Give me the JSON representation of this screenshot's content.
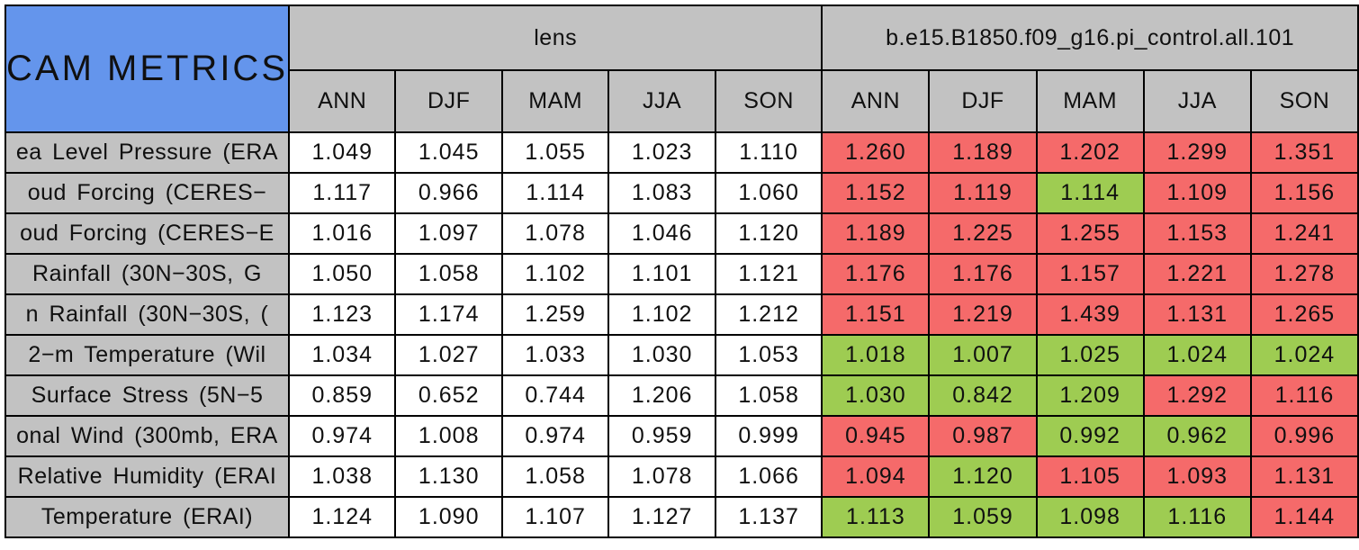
{
  "colors": {
    "title_background": "#6495EC",
    "header_background": "#C2C2C2",
    "worse_cell_red": "#F56A6A",
    "better_cell_green": "#9ECC52",
    "neutral_cell_white": "#FFFFFF",
    "border": "#000000"
  },
  "chart_data": {
    "type": "table",
    "title": "CAM METRICS",
    "groups": [
      {
        "label": "lens",
        "seasons": [
          "ANN",
          "DJF",
          "MAM",
          "JJA",
          "SON"
        ]
      },
      {
        "label": "b.e15.B1850.f09_g16.pi_control.all.101",
        "seasons": [
          "ANN",
          "DJF",
          "MAM",
          "JJA",
          "SON"
        ]
      }
    ],
    "rows": [
      {
        "label": "ea Level Pressure (ERA",
        "lens": [
          "1.049",
          "1.045",
          "1.055",
          "1.023",
          "1.110"
        ],
        "run": [
          "1.260",
          "1.189",
          "1.202",
          "1.299",
          "1.351"
        ],
        "run_colors": [
          "red",
          "red",
          "red",
          "red",
          "red"
        ]
      },
      {
        "label": "oud Forcing (CERES−",
        "lens": [
          "1.117",
          "0.966",
          "1.114",
          "1.083",
          "1.060"
        ],
        "run": [
          "1.152",
          "1.119",
          "1.114",
          "1.109",
          "1.156"
        ],
        "run_colors": [
          "red",
          "red",
          "green",
          "red",
          "red"
        ]
      },
      {
        "label": "oud Forcing (CERES−E",
        "lens": [
          "1.016",
          "1.097",
          "1.078",
          "1.046",
          "1.120"
        ],
        "run": [
          "1.189",
          "1.225",
          "1.255",
          "1.153",
          "1.241"
        ],
        "run_colors": [
          "red",
          "red",
          "red",
          "red",
          "red"
        ]
      },
      {
        "label": "Rainfall (30N−30S, G",
        "lens": [
          "1.050",
          "1.058",
          "1.102",
          "1.101",
          "1.121"
        ],
        "run": [
          "1.176",
          "1.176",
          "1.157",
          "1.221",
          "1.278"
        ],
        "run_colors": [
          "red",
          "red",
          "red",
          "red",
          "red"
        ]
      },
      {
        "label": "n Rainfall (30N−30S, (",
        "lens": [
          "1.123",
          "1.174",
          "1.259",
          "1.102",
          "1.212"
        ],
        "run": [
          "1.151",
          "1.219",
          "1.439",
          "1.131",
          "1.265"
        ],
        "run_colors": [
          "red",
          "red",
          "red",
          "red",
          "red"
        ]
      },
      {
        "label": "2−m Temperature (Wil",
        "lens": [
          "1.034",
          "1.027",
          "1.033",
          "1.030",
          "1.053"
        ],
        "run": [
          "1.018",
          "1.007",
          "1.025",
          "1.024",
          "1.024"
        ],
        "run_colors": [
          "green",
          "green",
          "green",
          "green",
          "green"
        ]
      },
      {
        "label": "Surface Stress (5N−5",
        "lens": [
          "0.859",
          "0.652",
          "0.744",
          "1.206",
          "1.058"
        ],
        "run": [
          "1.030",
          "0.842",
          "1.209",
          "1.292",
          "1.116"
        ],
        "run_colors": [
          "green",
          "green",
          "green",
          "red",
          "red"
        ]
      },
      {
        "label": "onal Wind (300mb, ERA",
        "lens": [
          "0.974",
          "1.008",
          "0.974",
          "0.959",
          "0.999"
        ],
        "run": [
          "0.945",
          "0.987",
          "0.992",
          "0.962",
          "0.996"
        ],
        "run_colors": [
          "red",
          "red",
          "green",
          "green",
          "red"
        ]
      },
      {
        "label": "Relative Humidity (ERAI",
        "lens": [
          "1.038",
          "1.130",
          "1.058",
          "1.078",
          "1.066"
        ],
        "run": [
          "1.094",
          "1.120",
          "1.105",
          "1.093",
          "1.131"
        ],
        "run_colors": [
          "red",
          "green",
          "red",
          "red",
          "red"
        ]
      },
      {
        "label": "Temperature (ERAI)",
        "lens": [
          "1.124",
          "1.090",
          "1.107",
          "1.127",
          "1.137"
        ],
        "run": [
          "1.113",
          "1.059",
          "1.098",
          "1.116",
          "1.144"
        ],
        "run_colors": [
          "green",
          "green",
          "green",
          "green",
          "red"
        ]
      }
    ]
  }
}
